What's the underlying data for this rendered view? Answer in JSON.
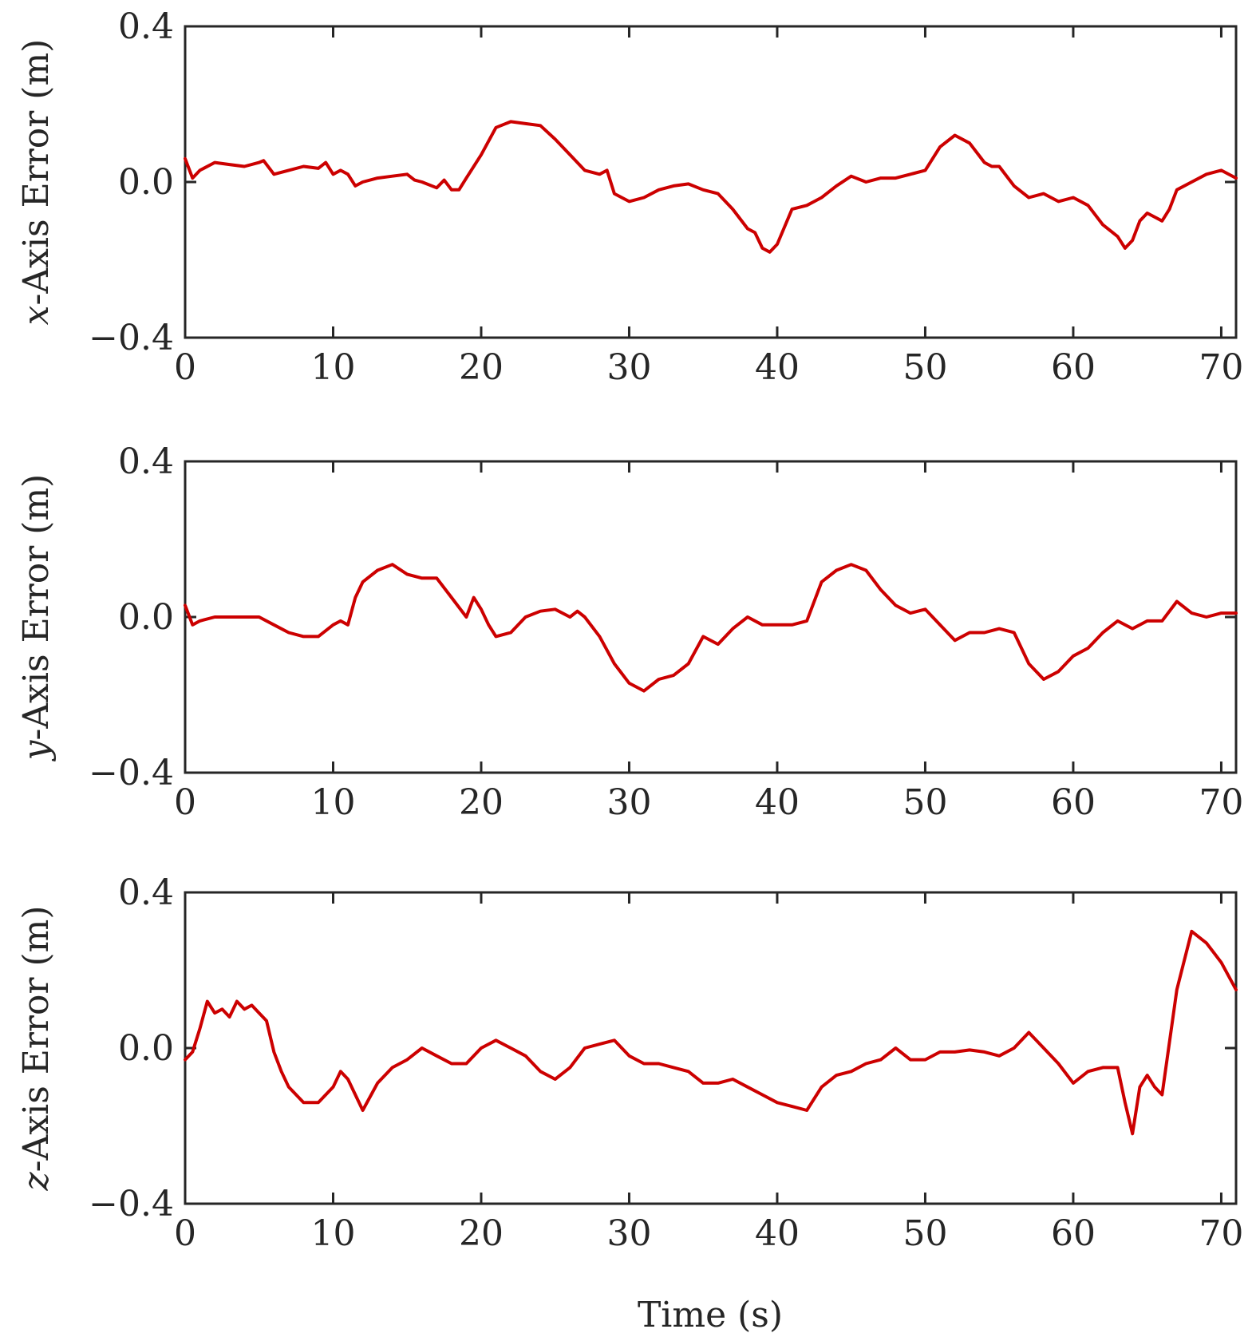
{
  "chart_data": [
    {
      "type": "line",
      "ylabel_var": "x",
      "ylabel_rest": "-Axis Error (m)",
      "xlim": [
        0,
        71
      ],
      "ylim": [
        -0.4,
        0.4
      ],
      "xticks": [
        "0",
        "10",
        "20",
        "30",
        "40",
        "50",
        "60",
        "70"
      ],
      "yticks": [
        "−0.4",
        "0.0",
        "0.4"
      ],
      "color": "#cc0000",
      "series": [
        {
          "x": [
            0,
            0.5,
            1,
            2,
            3,
            4,
            5,
            5.3,
            6,
            7,
            8,
            9,
            9.5,
            10,
            10.5,
            11,
            11.5,
            12,
            13,
            14,
            15,
            15.5,
            16,
            17,
            17.5,
            18,
            18.5,
            19,
            20,
            21,
            22,
            23,
            24,
            25,
            26,
            27,
            28,
            28.5,
            29,
            30,
            31,
            32,
            33,
            34,
            35,
            36,
            37,
            38,
            38.5,
            39,
            39.5,
            40,
            41,
            42,
            43,
            44,
            45,
            46,
            47,
            48,
            49,
            50,
            51,
            52,
            53,
            54,
            54.5,
            55,
            56,
            57,
            58,
            59,
            60,
            61,
            62,
            63,
            63.5,
            64,
            64.5,
            65,
            65.5,
            66,
            66.5,
            67,
            68,
            69,
            70,
            71
          ],
          "values": [
            0.06,
            0.01,
            0.03,
            0.05,
            0.045,
            0.04,
            0.05,
            0.055,
            0.02,
            0.03,
            0.04,
            0.035,
            0.05,
            0.02,
            0.03,
            0.02,
            -0.01,
            0.0,
            0.01,
            0.015,
            0.02,
            0.005,
            0.0,
            -0.015,
            0.005,
            -0.02,
            -0.02,
            0.01,
            0.07,
            0.14,
            0.155,
            0.15,
            0.145,
            0.11,
            0.07,
            0.03,
            0.02,
            0.03,
            -0.03,
            -0.05,
            -0.04,
            -0.02,
            -0.01,
            -0.005,
            -0.02,
            -0.03,
            -0.07,
            -0.12,
            -0.13,
            -0.17,
            -0.18,
            -0.16,
            -0.07,
            -0.06,
            -0.04,
            -0.01,
            0.015,
            0.0,
            0.01,
            0.01,
            0.02,
            0.03,
            0.09,
            0.12,
            0.1,
            0.05,
            0.04,
            0.04,
            -0.01,
            -0.04,
            -0.03,
            -0.05,
            -0.04,
            -0.06,
            -0.11,
            -0.14,
            -0.17,
            -0.15,
            -0.1,
            -0.08,
            -0.09,
            -0.1,
            -0.07,
            -0.02,
            0.0,
            0.02,
            0.03,
            0.01
          ]
        }
      ]
    },
    {
      "type": "line",
      "ylabel_var": "y",
      "ylabel_rest": "-Axis Error (m)",
      "xlim": [
        0,
        71
      ],
      "ylim": [
        -0.4,
        0.4
      ],
      "xticks": [
        "0",
        "10",
        "20",
        "30",
        "40",
        "50",
        "60",
        "70"
      ],
      "yticks": [
        "−0.4",
        "0.0",
        "0.4"
      ],
      "color": "#cc0000",
      "series": [
        {
          "x": [
            0,
            0.5,
            1,
            2,
            3,
            4,
            5,
            6,
            7,
            8,
            9,
            10,
            10.5,
            11,
            11.5,
            12,
            13,
            14,
            15,
            16,
            17,
            18,
            19,
            19.5,
            20,
            20.5,
            21,
            22,
            23,
            24,
            25,
            26,
            26.5,
            27,
            28,
            29,
            30,
            31,
            32,
            33,
            34,
            35,
            36,
            37,
            38,
            39,
            40,
            41,
            42,
            43,
            44,
            45,
            46,
            47,
            48,
            49,
            50,
            51,
            52,
            53,
            54,
            55,
            56,
            57,
            58,
            59,
            60,
            61,
            62,
            63,
            64,
            65,
            66,
            67,
            68,
            69,
            70,
            71
          ],
          "values": [
            0.03,
            -0.02,
            -0.01,
            0.0,
            0.0,
            0.0,
            0.0,
            -0.02,
            -0.04,
            -0.05,
            -0.05,
            -0.02,
            -0.01,
            -0.02,
            0.05,
            0.09,
            0.12,
            0.135,
            0.11,
            0.1,
            0.1,
            0.05,
            0.0,
            0.05,
            0.02,
            -0.02,
            -0.05,
            -0.04,
            0.0,
            0.015,
            0.02,
            0.0,
            0.015,
            0.0,
            -0.05,
            -0.12,
            -0.17,
            -0.19,
            -0.16,
            -0.15,
            -0.12,
            -0.05,
            -0.07,
            -0.03,
            0.0,
            -0.02,
            -0.02,
            -0.02,
            -0.01,
            0.09,
            0.12,
            0.135,
            0.12,
            0.07,
            0.03,
            0.01,
            0.02,
            -0.02,
            -0.06,
            -0.04,
            -0.04,
            -0.03,
            -0.04,
            -0.12,
            -0.16,
            -0.14,
            -0.1,
            -0.08,
            -0.04,
            -0.01,
            -0.03,
            -0.01,
            -0.01,
            0.04,
            0.01,
            0.0,
            0.01,
            0.01
          ]
        }
      ]
    },
    {
      "type": "line",
      "ylabel_var": "z",
      "ylabel_rest": "-Axis Error (m)",
      "xlim": [
        0,
        71
      ],
      "ylim": [
        -0.4,
        0.4
      ],
      "xticks": [
        "0",
        "10",
        "20",
        "30",
        "40",
        "50",
        "60",
        "70"
      ],
      "yticks": [
        "−0.4",
        "0.0",
        "0.4"
      ],
      "color": "#cc0000",
      "series": [
        {
          "x": [
            0,
            0.5,
            1,
            1.5,
            2,
            2.5,
            3,
            3.5,
            4,
            4.5,
            5,
            5.5,
            6,
            6.5,
            7,
            8,
            9,
            10,
            10.5,
            11,
            12,
            13,
            14,
            15,
            16,
            17,
            18,
            19,
            20,
            21,
            22,
            23,
            24,
            25,
            26,
            27,
            28,
            29,
            30,
            31,
            32,
            33,
            34,
            35,
            36,
            37,
            38,
            39,
            40,
            41,
            42,
            43,
            44,
            45,
            46,
            47,
            48,
            49,
            50,
            51,
            52,
            53,
            54,
            55,
            56,
            57,
            58,
            59,
            60,
            61,
            62,
            63,
            63.5,
            64,
            64.5,
            65,
            65.5,
            66,
            67,
            68,
            69,
            70,
            71
          ],
          "values": [
            -0.03,
            -0.01,
            0.05,
            0.12,
            0.09,
            0.1,
            0.08,
            0.12,
            0.1,
            0.11,
            0.09,
            0.07,
            -0.01,
            -0.06,
            -0.1,
            -0.14,
            -0.14,
            -0.1,
            -0.06,
            -0.08,
            -0.16,
            -0.09,
            -0.05,
            -0.03,
            0.0,
            -0.02,
            -0.04,
            -0.04,
            0.0,
            0.02,
            0.0,
            -0.02,
            -0.06,
            -0.08,
            -0.05,
            0.0,
            0.01,
            0.02,
            -0.02,
            -0.04,
            -0.04,
            -0.05,
            -0.06,
            -0.09,
            -0.09,
            -0.08,
            -0.1,
            -0.12,
            -0.14,
            -0.15,
            -0.16,
            -0.1,
            -0.07,
            -0.06,
            -0.04,
            -0.03,
            0.0,
            -0.03,
            -0.03,
            -0.01,
            -0.01,
            -0.005,
            -0.01,
            -0.02,
            0.0,
            0.04,
            0.0,
            -0.04,
            -0.09,
            -0.06,
            -0.05,
            -0.05,
            -0.14,
            -0.22,
            -0.1,
            -0.07,
            -0.1,
            -0.12,
            0.15,
            0.3,
            0.27,
            0.22,
            0.15
          ]
        }
      ]
    }
  ],
  "xlabel": "Time (s)"
}
